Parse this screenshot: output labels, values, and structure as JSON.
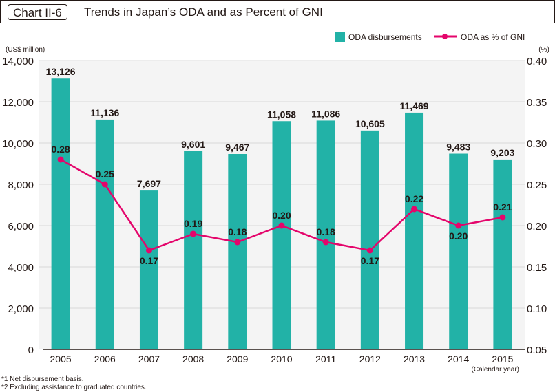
{
  "header": {
    "chart_tag": "Chart II-6",
    "title": "Trends in Japan’s ODA and as Percent of GNI"
  },
  "colors": {
    "bar": "#22b2a7",
    "line": "#e4056b",
    "plot_bg": "#f4f4f4",
    "grid": "#d9d9d9",
    "text": "#231815"
  },
  "chart_data": {
    "type": "bar",
    "title": "Trends in Japan’s ODA and as Percent of GNI",
    "categories": [
      "2005",
      "2006",
      "2007",
      "2008",
      "2009",
      "2010",
      "2011",
      "2012",
      "2013",
      "2014",
      "2015"
    ],
    "series": [
      {
        "name": "ODA disbursements",
        "type": "bar",
        "axis": "left",
        "values": [
          13126,
          11136,
          7697,
          9601,
          9467,
          11058,
          11086,
          10605,
          11469,
          9483,
          9203
        ],
        "labels": [
          "13,126",
          "11,136",
          "7,697",
          "9,601",
          "9,467",
          "11,058",
          "11,086",
          "10,605",
          "11,469",
          "9,483",
          "9,203"
        ]
      },
      {
        "name": "ODA as % of GNI",
        "type": "line",
        "axis": "right",
        "values": [
          0.28,
          0.25,
          0.17,
          0.19,
          0.18,
          0.2,
          0.18,
          0.17,
          0.22,
          0.2,
          0.21
        ],
        "labels": [
          "0.28",
          "0.25",
          "0.17",
          "0.19",
          "0.18",
          "0.20",
          "0.18",
          "0.17",
          "0.22",
          "0.20",
          "0.21"
        ],
        "label_position": [
          "above",
          "above",
          "below",
          "above",
          "above",
          "above",
          "above",
          "below",
          "above",
          "below",
          "above"
        ]
      }
    ],
    "xlabel": "(Calendar year)",
    "ylabel": "(US$ million)",
    "ylabel_right": "(%)",
    "ylim": [
      0,
      14000
    ],
    "ylim_right": [
      0.05,
      0.4
    ],
    "yticks": [
      0,
      2000,
      4000,
      6000,
      8000,
      10000,
      12000,
      14000
    ],
    "ytick_labels": [
      "0",
      "2,000",
      "4,000",
      "6,000",
      "8,000",
      "10,000",
      "12,000",
      "14,000"
    ],
    "yticks_right": [
      0.05,
      0.1,
      0.15,
      0.2,
      0.25,
      0.3,
      0.35,
      0.4
    ],
    "ytick_labels_right": [
      "0.05",
      "0.10",
      "0.15",
      "0.20",
      "0.25",
      "0.30",
      "0.35",
      "0.40"
    ],
    "grid": true,
    "legend": {
      "position": "top-right",
      "entries": [
        "ODA disbursements",
        "ODA as % of GNI"
      ]
    }
  },
  "footnotes": [
    "*1 Net disbursement basis.",
    "*2 Excluding assistance to graduated countries."
  ]
}
